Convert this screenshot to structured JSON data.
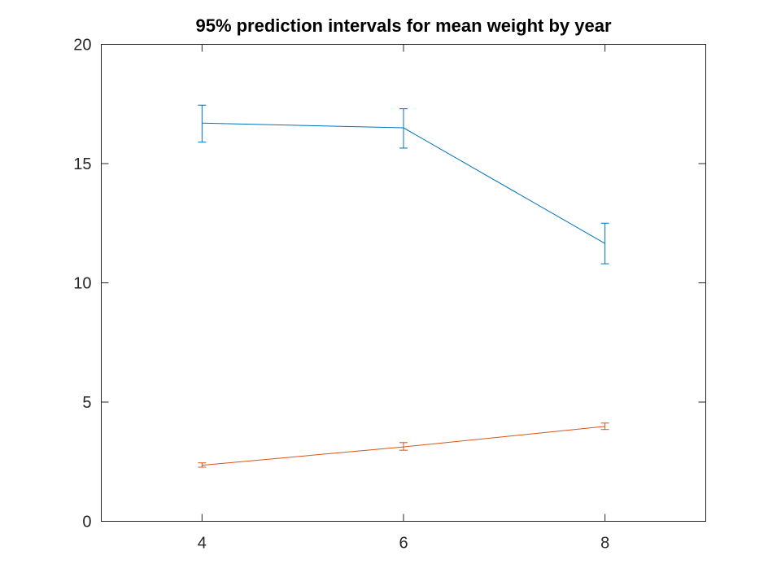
{
  "chart_data": {
    "type": "line",
    "title": "95% prediction intervals for mean weight by year",
    "xlabel": "",
    "ylabel": "",
    "xlim": [
      3,
      9
    ],
    "ylim": [
      0,
      20
    ],
    "x_ticks": [
      4,
      6,
      8
    ],
    "x_tick_labels": [
      "4",
      "6",
      "8"
    ],
    "y_ticks": [
      0,
      5,
      10,
      15,
      20
    ],
    "y_tick_labels": [
      "0",
      "5",
      "10",
      "15",
      "20"
    ],
    "grid": false,
    "legend": false,
    "series": [
      {
        "color": "#0072bd",
        "points": [
          {
            "x": 4,
            "y": 16.7,
            "lower": 15.9,
            "upper": 17.45
          },
          {
            "x": 6,
            "y": 16.5,
            "lower": 15.65,
            "upper": 17.3
          },
          {
            "x": 8,
            "y": 11.65,
            "lower": 10.8,
            "upper": 12.5
          }
        ]
      },
      {
        "color": "#d95319",
        "points": [
          {
            "x": 4,
            "y": 2.35,
            "lower": 2.27,
            "upper": 2.45
          },
          {
            "x": 6,
            "y": 3.12,
            "lower": 2.98,
            "upper": 3.3
          },
          {
            "x": 8,
            "y": 3.98,
            "lower": 3.85,
            "upper": 4.12
          }
        ]
      }
    ]
  }
}
